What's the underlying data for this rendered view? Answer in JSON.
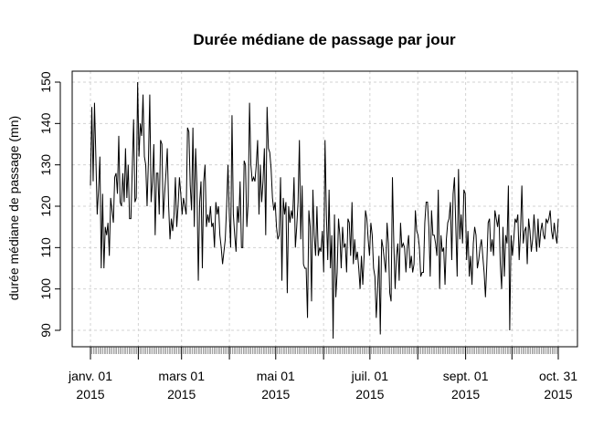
{
  "chart_data": {
    "type": "line",
    "title": "Durée médiane de passage par jour",
    "xlabel": "",
    "ylabel": "durée médiane de passage (mn)",
    "x_range": [
      "2015-01-01",
      "2015-10-31"
    ],
    "ylim": [
      88,
      150
    ],
    "grid": true,
    "legend": "none",
    "line_color": "#000000",
    "grid_color": "#d3d3d3",
    "x_ticks": [
      {
        "date": "2015-01-01",
        "label": [
          "janv. 01",
          "2015"
        ]
      },
      {
        "date": "2015-03-01",
        "label": [
          "mars 01",
          "2015"
        ]
      },
      {
        "date": "2015-05-01",
        "label": [
          "mai 01",
          "2015"
        ]
      },
      {
        "date": "2015-07-01",
        "label": [
          "juil. 01",
          "2015"
        ]
      },
      {
        "date": "2015-09-01",
        "label": [
          "sept. 01",
          "2015"
        ]
      },
      {
        "date": "2015-10-31",
        "label": [
          "oct. 31",
          "2015"
        ]
      }
    ],
    "y_ticks": [
      90,
      100,
      110,
      120,
      130,
      140,
      150
    ],
    "series": [
      {
        "name": "",
        "x_start": "2015-01-01",
        "x_end": "2015-10-31",
        "values": [
          125,
          144,
          126,
          145,
          132,
          118,
          124,
          132,
          105,
          123,
          105,
          115,
          113,
          116,
          108,
          122,
          119,
          116,
          127,
          128,
          123,
          137,
          121,
          120,
          128,
          121,
          134,
          122,
          130,
          117,
          117,
          129,
          141,
          121,
          122,
          150,
          132,
          140,
          137,
          147,
          132,
          130,
          120,
          131,
          147,
          121,
          126,
          135,
          113,
          128,
          128,
          118,
          136,
          135,
          117,
          123,
          128,
          134,
          120,
          112,
          117,
          114,
          118,
          127,
          115,
          120,
          127,
          123,
          118,
          122,
          120,
          118,
          139,
          138,
          125,
          119,
          139,
          115,
          134,
          125,
          102,
          121,
          126,
          105,
          126,
          130,
          115,
          118,
          116,
          120,
          115,
          116,
          110,
          121,
          118,
          120,
          113,
          110,
          106,
          109,
          112,
          120,
          130,
          118,
          110,
          142,
          118,
          113,
          109,
          120,
          116,
          126,
          110,
          110,
          131,
          130,
          115,
          121,
          145,
          130,
          126,
          127,
          126,
          130,
          136,
          118,
          130,
          121,
          126,
          134,
          113,
          144,
          134,
          133,
          129,
          122,
          119,
          121,
          115,
          112,
          113,
          127,
          102,
          122,
          118,
          121,
          99,
          120,
          116,
          119,
          117,
          127,
          110,
          115,
          121,
          136,
          112,
          125,
          106,
          105,
          105,
          93,
          119,
          115,
          97,
          124,
          113,
          108,
          120,
          108,
          110,
          109,
          114,
          104,
          136,
          118,
          107,
          124,
          105,
          113,
          88,
          118,
          98,
          104,
          117,
          113,
          105,
          115,
          110,
          111,
          104,
          117,
          116,
          108,
          121,
          106,
          112,
          107,
          109,
          105,
          100,
          108,
          101,
          108,
          119,
          117,
          112,
          108,
          116,
          113,
          105,
          103,
          93,
          100,
          108,
          89,
          112,
          110,
          107,
          104,
          116,
          111,
          99,
          97,
          127,
          111,
          100,
          108,
          111,
          102,
          116,
          110,
          111,
          110,
          104,
          110,
          113,
          105,
          108,
          104,
          106,
          119,
          114,
          113,
          110,
          103,
          104,
          104,
          116,
          121,
          121,
          115,
          103,
          119,
          113,
          113,
          111,
          108,
          124,
          100,
          113,
          109,
          110,
          101,
          112,
          116,
          117,
          121,
          107,
          123,
          127,
          115,
          103,
          129,
          112,
          118,
          111,
          124,
          123,
          107,
          114,
          103,
          108,
          101,
          111,
          115,
          113,
          105,
          107,
          110,
          112,
          108,
          104,
          98,
          106,
          116,
          117,
          109,
          112,
          108,
          119,
          117,
          115,
          118,
          106,
          100,
          115,
          103,
          113,
          111,
          125,
          90,
          113,
          108,
          112,
          117,
          116,
          118,
          107,
          114,
          125,
          111,
          114,
          115,
          106,
          117,
          114,
          109,
          112,
          118,
          113,
          109,
          117,
          110,
          114,
          116,
          113,
          112,
          117,
          116,
          117,
          119,
          114,
          112,
          116,
          113,
          111,
          117
        ]
      }
    ]
  }
}
